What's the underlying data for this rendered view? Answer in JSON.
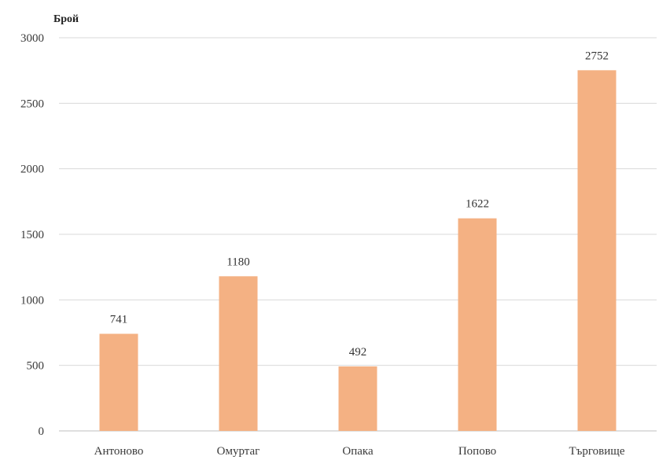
{
  "chart_data": {
    "type": "bar",
    "title": "",
    "xlabel": "",
    "ylabel": "Брой",
    "categories": [
      "Антоново",
      "Омуртаг",
      "Опака",
      "Попово",
      "Търговище"
    ],
    "values": [
      741,
      1180,
      492,
      1622,
      2752
    ],
    "data_labels": [
      "741",
      "1180",
      "492",
      "1622",
      "2752"
    ],
    "ylim": [
      0,
      3000
    ],
    "yticks": [
      0,
      500,
      1000,
      1500,
      2000,
      2500,
      3000
    ],
    "ytick_labels": [
      "0",
      "500",
      "1000",
      "1500",
      "2000",
      "2500",
      "3000"
    ],
    "grid": true,
    "legend": "none",
    "bar_color": "#F4B183"
  }
}
